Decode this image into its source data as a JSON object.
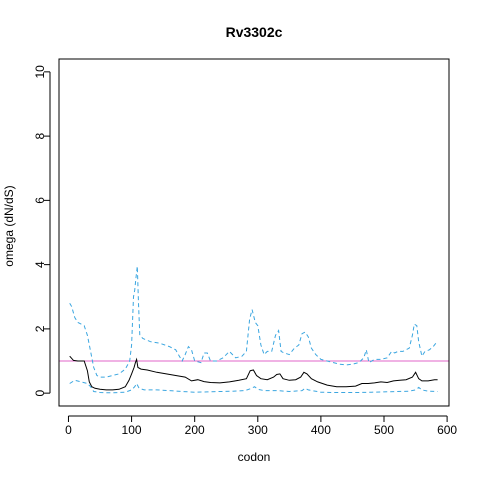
{
  "chart_data": {
    "type": "line",
    "title": "Rv3302c",
    "xlabel": "codon",
    "ylabel": "omega (dN/dS)",
    "xlim": [
      -15,
      603
    ],
    "ylim": [
      -0.4,
      10.4
    ],
    "xticks": [
      "0",
      "100",
      "200",
      "300",
      "400",
      "500",
      "600"
    ],
    "yticks": [
      "0",
      "2",
      "4",
      "6",
      "8",
      "10"
    ],
    "reference_line": {
      "y": 1,
      "color": "#E066C8"
    },
    "series": [
      {
        "style": "solid",
        "color": "#000000",
        "x": [
          2,
          8,
          15,
          25,
          30,
          33,
          37,
          42,
          50,
          60,
          70,
          80,
          90,
          96,
          100,
          104,
          106,
          108,
          110,
          115,
          125,
          140,
          155,
          170,
          185,
          195,
          205,
          215,
          225,
          240,
          255,
          270,
          282,
          288,
          293,
          298,
          305,
          315,
          325,
          330,
          335,
          340,
          350,
          360,
          368,
          373,
          378,
          385,
          395,
          410,
          425,
          440,
          455,
          465,
          475,
          485,
          495,
          505,
          515,
          525,
          535,
          545,
          550,
          555,
          560,
          570,
          580,
          585
        ],
        "y": [
          1.15,
          1.02,
          1.0,
          1.0,
          0.7,
          0.35,
          0.2,
          0.15,
          0.12,
          0.1,
          0.1,
          0.12,
          0.2,
          0.4,
          0.6,
          0.8,
          0.95,
          1.05,
          0.8,
          0.75,
          0.72,
          0.65,
          0.6,
          0.55,
          0.5,
          0.38,
          0.42,
          0.36,
          0.33,
          0.32,
          0.35,
          0.4,
          0.45,
          0.7,
          0.72,
          0.55,
          0.45,
          0.42,
          0.5,
          0.58,
          0.6,
          0.45,
          0.4,
          0.42,
          0.5,
          0.65,
          0.6,
          0.45,
          0.35,
          0.25,
          0.2,
          0.2,
          0.22,
          0.3,
          0.3,
          0.32,
          0.35,
          0.33,
          0.38,
          0.4,
          0.42,
          0.5,
          0.65,
          0.45,
          0.38,
          0.38,
          0.42,
          0.42
        ]
      },
      {
        "style": "dashed",
        "color": "#3BA6E0",
        "x": [
          2,
          5,
          10,
          15,
          20,
          25,
          30,
          35,
          40,
          45,
          50,
          60,
          70,
          80,
          90,
          97,
          100,
          103,
          105,
          107,
          109,
          111,
          113,
          118,
          130,
          145,
          160,
          170,
          180,
          185,
          190,
          195,
          200,
          210,
          215,
          220,
          225,
          235,
          245,
          255,
          265,
          275,
          282,
          287,
          291,
          296,
          300,
          305,
          310,
          315,
          322,
          328,
          333,
          337,
          342,
          350,
          358,
          365,
          370,
          375,
          380,
          385,
          392,
          400,
          410,
          420,
          430,
          440,
          450,
          460,
          468,
          472,
          476,
          485,
          495,
          505,
          512,
          517,
          522,
          530,
          540,
          545,
          548,
          552,
          555,
          560,
          565,
          572,
          578,
          584
        ],
        "y": [
          2.8,
          2.7,
          2.35,
          2.2,
          2.15,
          2.1,
          1.8,
          1.3,
          0.8,
          0.55,
          0.5,
          0.5,
          0.55,
          0.6,
          0.75,
          1.0,
          1.5,
          3.0,
          3.2,
          3.6,
          3.95,
          2.8,
          1.8,
          1.7,
          1.6,
          1.55,
          1.45,
          1.35,
          1.0,
          1.2,
          1.45,
          1.35,
          1.0,
          0.95,
          1.25,
          1.25,
          1.0,
          1.0,
          1.1,
          1.3,
          1.1,
          1.15,
          1.3,
          2.3,
          2.6,
          2.2,
          2.1,
          1.5,
          1.2,
          1.3,
          1.3,
          1.8,
          1.95,
          1.3,
          1.25,
          1.2,
          1.4,
          1.5,
          1.85,
          1.9,
          1.75,
          1.4,
          1.2,
          1.05,
          1.0,
          0.95,
          0.9,
          0.88,
          0.9,
          0.95,
          1.1,
          1.35,
          0.95,
          1.05,
          1.05,
          1.1,
          1.3,
          1.25,
          1.3,
          1.3,
          1.4,
          1.8,
          2.15,
          2.1,
          1.6,
          1.15,
          1.3,
          1.35,
          1.45,
          1.6
        ]
      },
      {
        "style": "dashed",
        "color": "#3BA6E0",
        "x": [
          2,
          10,
          20,
          30,
          35,
          40,
          50,
          60,
          70,
          80,
          90,
          100,
          105,
          108,
          112,
          120,
          140,
          160,
          180,
          200,
          220,
          240,
          260,
          280,
          290,
          295,
          300,
          310,
          330,
          350,
          370,
          375,
          380,
          400,
          420,
          440,
          460,
          480,
          500,
          520,
          540,
          550,
          555,
          560,
          570,
          585
        ],
        "y": [
          0.3,
          0.4,
          0.35,
          0.3,
          0.2,
          0.05,
          0.02,
          0.01,
          0.01,
          0.02,
          0.03,
          0.1,
          0.2,
          0.3,
          0.15,
          0.1,
          0.1,
          0.08,
          0.05,
          0.03,
          0.04,
          0.05,
          0.06,
          0.08,
          0.15,
          0.2,
          0.12,
          0.08,
          0.08,
          0.05,
          0.08,
          0.15,
          0.1,
          0.03,
          0.02,
          0.02,
          0.02,
          0.03,
          0.04,
          0.05,
          0.06,
          0.1,
          0.18,
          0.1,
          0.06,
          0.05
        ]
      }
    ]
  }
}
